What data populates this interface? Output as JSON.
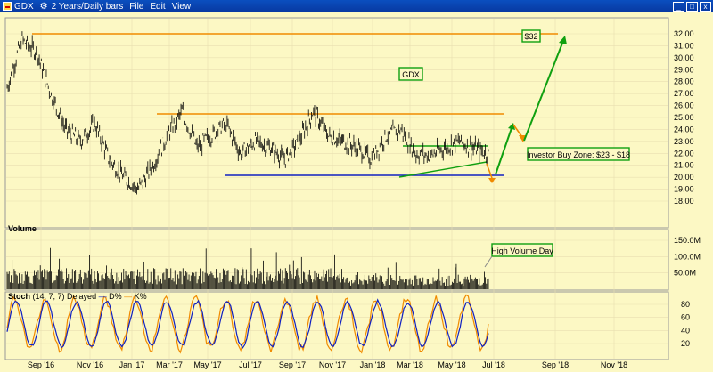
{
  "window": {
    "ticker": "GDX",
    "period": "2 Years/Daily bars",
    "menus": [
      "File",
      "Edit",
      "View"
    ]
  },
  "chart_data": {
    "type": "bar",
    "symbol_box": "GDX",
    "price_axis": {
      "ylim": [
        17.5,
        33.0
      ],
      "ticks": [
        "32.00",
        "31.00",
        "30.00",
        "29.00",
        "28.00",
        "27.00",
        "26.00",
        "25.00",
        "24.00",
        "23.00",
        "22.00",
        "21.00",
        "20.00",
        "19.00",
        "18.00"
      ]
    },
    "x_axis": {
      "ticks": [
        "Sep '16",
        "Nov '16",
        "Jan '17",
        "Mar '17",
        "May '17",
        "Jul '17",
        "Sep '17",
        "Nov '17",
        "Jan '18",
        "Mar '18",
        "May '18",
        "Jul '18",
        "Sep '18",
        "Nov '18"
      ]
    },
    "annotations": {
      "target": "$32",
      "buy_zone": "Investor Buy Zone: $23 - $18",
      "high_volume": "High Volume Day"
    },
    "price_series": [
      {
        "x": "Jul '16",
        "y": 27.5
      },
      {
        "x": "Aug '16",
        "y": 31.5
      },
      {
        "x": "Aug '16b",
        "y": 30.5
      },
      {
        "x": "Sep '16",
        "y": 27.0
      },
      {
        "x": "Oct '16",
        "y": 24.0
      },
      {
        "x": "Oct '16b",
        "y": 23.0
      },
      {
        "x": "Nov '16",
        "y": 24.5
      },
      {
        "x": "Nov '16b",
        "y": 21.5
      },
      {
        "x": "Dec '16",
        "y": 20.0
      },
      {
        "x": "Dec '16b",
        "y": 19.0
      },
      {
        "x": "Jan '17",
        "y": 21.0
      },
      {
        "x": "Feb '17",
        "y": 23.5
      },
      {
        "x": "Feb '17b",
        "y": 25.5
      },
      {
        "x": "Mar '17",
        "y": 22.5
      },
      {
        "x": "Apr '17",
        "y": 23.5
      },
      {
        "x": "Apr '17b",
        "y": 24.5
      },
      {
        "x": "May '17",
        "y": 22.0
      },
      {
        "x": "Jun '17",
        "y": 23.0
      },
      {
        "x": "Jun '17b",
        "y": 22.5
      },
      {
        "x": "Jul '17",
        "y": 21.5
      },
      {
        "x": "Aug '17",
        "y": 23.0
      },
      {
        "x": "Sep '17",
        "y": 25.5
      },
      {
        "x": "Sep '17b",
        "y": 23.5
      },
      {
        "x": "Oct '17",
        "y": 23.0
      },
      {
        "x": "Nov '17",
        "y": 22.5
      },
      {
        "x": "Dec '17",
        "y": 21.5
      },
      {
        "x": "Jan '18",
        "y": 23.5
      },
      {
        "x": "Jan '18b",
        "y": 24.0
      },
      {
        "x": "Feb '18",
        "y": 22.0
      },
      {
        "x": "Mar '18",
        "y": 21.8
      },
      {
        "x": "Apr '18",
        "y": 22.5
      },
      {
        "x": "May '18",
        "y": 23.0
      },
      {
        "x": "Jun '18",
        "y": 22.4
      },
      {
        "x": "Jun '18b",
        "y": 22.0
      }
    ],
    "volume_axis": {
      "ticks": [
        "150.0M",
        "100.0M",
        "50.0M"
      ]
    },
    "stoch_axis": {
      "ticks": [
        "80",
        "60",
        "40",
        "20"
      ]
    }
  },
  "panels": {
    "volume_label": "Volume",
    "stoch_label": "Stoch",
    "stoch_params": "(14, 7, 7) Delayed",
    "d_label": "D%",
    "k_label": "K%"
  },
  "colors": {
    "background": "#fcf8c4",
    "orange": "#f08a00",
    "blue": "#1020c0",
    "green": "#10a010"
  }
}
